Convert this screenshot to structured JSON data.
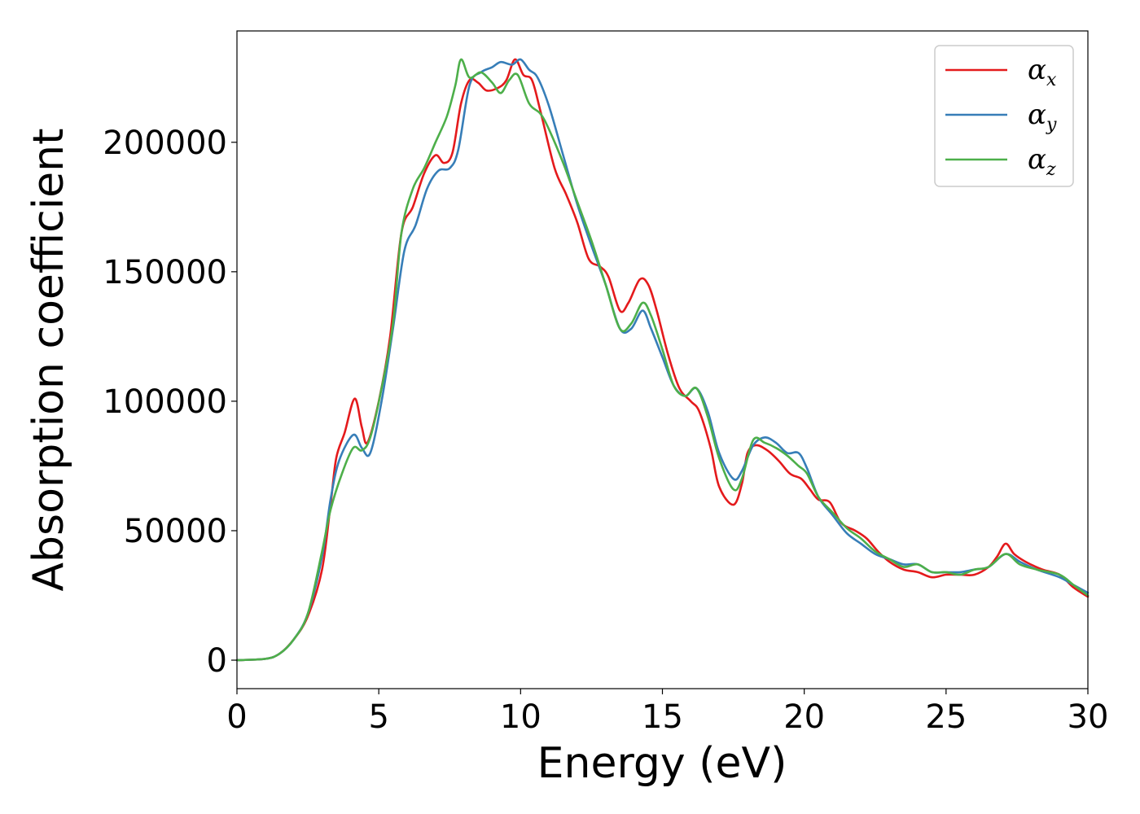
{
  "chart_data": {
    "type": "line",
    "title": "",
    "xlabel": "Energy (eV)",
    "ylabel": "Absorption coefficient",
    "xlim": [
      0,
      30
    ],
    "ylim": [
      -11000,
      243000
    ],
    "xticks": [
      0,
      5,
      10,
      15,
      20,
      25,
      30
    ],
    "xtick_labels": [
      "0",
      "5",
      "10",
      "15",
      "20",
      "25",
      "30"
    ],
    "yticks": [
      0,
      50000,
      100000,
      150000,
      200000
    ],
    "ytick_labels": [
      "0",
      "50000",
      "100000",
      "150000",
      "200000"
    ],
    "grid": false,
    "legend_position": "top-right",
    "series": [
      {
        "name": "α",
        "subscript": "x",
        "color": "#e41a1c",
        "points": [
          [
            0,
            0
          ],
          [
            1,
            500
          ],
          [
            1.5,
            2500
          ],
          [
            2,
            8000
          ],
          [
            2.5,
            17000
          ],
          [
            3,
            35000
          ],
          [
            3.3,
            60000
          ],
          [
            3.5,
            78000
          ],
          [
            3.8,
            88000
          ],
          [
            4.15,
            101000
          ],
          [
            4.4,
            90000
          ],
          [
            4.6,
            84000
          ],
          [
            5,
            100000
          ],
          [
            5.4,
            125000
          ],
          [
            5.8,
            165000
          ],
          [
            6.2,
            175000
          ],
          [
            6.6,
            188000
          ],
          [
            7,
            195000
          ],
          [
            7.3,
            192000
          ],
          [
            7.6,
            196000
          ],
          [
            7.9,
            215000
          ],
          [
            8.2,
            224000
          ],
          [
            8.5,
            223000
          ],
          [
            8.8,
            220000
          ],
          [
            9.2,
            221000
          ],
          [
            9.5,
            224000
          ],
          [
            9.8,
            232000
          ],
          [
            10.1,
            226000
          ],
          [
            10.4,
            224000
          ],
          [
            10.7,
            212000
          ],
          [
            11.2,
            190000
          ],
          [
            11.6,
            180000
          ],
          [
            12,
            169000
          ],
          [
            12.4,
            155000
          ],
          [
            12.8,
            152000
          ],
          [
            13.1,
            148000
          ],
          [
            13.5,
            135000
          ],
          [
            13.8,
            138000
          ],
          [
            14.2,
            147000
          ],
          [
            14.5,
            145000
          ],
          [
            14.8,
            135000
          ],
          [
            15.2,
            118000
          ],
          [
            15.6,
            105000
          ],
          [
            16,
            100000
          ],
          [
            16.3,
            96000
          ],
          [
            16.7,
            82000
          ],
          [
            17,
            67000
          ],
          [
            17.5,
            60000
          ],
          [
            17.8,
            68000
          ],
          [
            18,
            80000
          ],
          [
            18.3,
            83000
          ],
          [
            18.7,
            81000
          ],
          [
            19.1,
            77000
          ],
          [
            19.5,
            72000
          ],
          [
            19.9,
            70000
          ],
          [
            20.2,
            66000
          ],
          [
            20.5,
            62000
          ],
          [
            20.9,
            61000
          ],
          [
            21.3,
            53000
          ],
          [
            21.8,
            50000
          ],
          [
            22.2,
            47000
          ],
          [
            22.6,
            42000
          ],
          [
            23,
            38000
          ],
          [
            23.5,
            35000
          ],
          [
            24,
            34000
          ],
          [
            24.5,
            32000
          ],
          [
            25,
            33000
          ],
          [
            25.5,
            33000
          ],
          [
            26,
            33000
          ],
          [
            26.5,
            36000
          ],
          [
            26.8,
            40000
          ],
          [
            27.1,
            45000
          ],
          [
            27.4,
            41000
          ],
          [
            27.8,
            38000
          ],
          [
            28.4,
            35000
          ],
          [
            29,
            33000
          ],
          [
            29.5,
            28000
          ],
          [
            30,
            24500
          ]
        ]
      },
      {
        "name": "α",
        "subscript": "y",
        "color": "#377eb8",
        "points": [
          [
            0,
            0
          ],
          [
            1,
            500
          ],
          [
            1.5,
            2500
          ],
          [
            2,
            8000
          ],
          [
            2.5,
            18000
          ],
          [
            3,
            40000
          ],
          [
            3.3,
            62000
          ],
          [
            3.6,
            77000
          ],
          [
            4.1,
            87000
          ],
          [
            4.4,
            82000
          ],
          [
            4.7,
            80000
          ],
          [
            5.1,
            100000
          ],
          [
            5.5,
            128000
          ],
          [
            5.9,
            158000
          ],
          [
            6.3,
            168000
          ],
          [
            6.7,
            182000
          ],
          [
            7.1,
            189000
          ],
          [
            7.5,
            190000
          ],
          [
            7.8,
            197000
          ],
          [
            8.2,
            222000
          ],
          [
            8.6,
            227000
          ],
          [
            9,
            229000
          ],
          [
            9.3,
            231000
          ],
          [
            9.7,
            230000
          ],
          [
            10,
            232000
          ],
          [
            10.3,
            228000
          ],
          [
            10.6,
            225000
          ],
          [
            11,
            214000
          ],
          [
            11.5,
            195000
          ],
          [
            12,
            176000
          ],
          [
            12.5,
            160000
          ],
          [
            13,
            145000
          ],
          [
            13.5,
            128000
          ],
          [
            13.9,
            128000
          ],
          [
            14.3,
            135000
          ],
          [
            14.6,
            128000
          ],
          [
            15,
            117000
          ],
          [
            15.4,
            106000
          ],
          [
            15.8,
            102000
          ],
          [
            16.2,
            105000
          ],
          [
            16.6,
            96000
          ],
          [
            17,
            80000
          ],
          [
            17.5,
            70000
          ],
          [
            17.8,
            73000
          ],
          [
            18.2,
            83000
          ],
          [
            18.6,
            86000
          ],
          [
            19,
            84000
          ],
          [
            19.4,
            80000
          ],
          [
            19.8,
            80000
          ],
          [
            20.1,
            74000
          ],
          [
            20.5,
            63000
          ],
          [
            21,
            56000
          ],
          [
            21.5,
            49000
          ],
          [
            22,
            45000
          ],
          [
            22.5,
            41000
          ],
          [
            23,
            39000
          ],
          [
            23.5,
            37000
          ],
          [
            24,
            37000
          ],
          [
            24.5,
            34000
          ],
          [
            25,
            34000
          ],
          [
            25.5,
            34000
          ],
          [
            26,
            35000
          ],
          [
            26.5,
            36000
          ],
          [
            27.1,
            41000
          ],
          [
            27.6,
            38000
          ],
          [
            28.2,
            35000
          ],
          [
            29,
            32000
          ],
          [
            29.5,
            29000
          ],
          [
            30,
            26000
          ]
        ]
      },
      {
        "name": "α",
        "subscript": "z",
        "color": "#4daf4a",
        "points": [
          [
            0,
            0
          ],
          [
            1,
            500
          ],
          [
            1.5,
            2500
          ],
          [
            2,
            8000
          ],
          [
            2.5,
            18000
          ],
          [
            3,
            42000
          ],
          [
            3.3,
            58000
          ],
          [
            3.7,
            72000
          ],
          [
            4.1,
            82000
          ],
          [
            4.4,
            81000
          ],
          [
            4.7,
            86000
          ],
          [
            5.1,
            105000
          ],
          [
            5.5,
            130000
          ],
          [
            5.8,
            165000
          ],
          [
            6.2,
            182000
          ],
          [
            6.6,
            190000
          ],
          [
            7,
            200000
          ],
          [
            7.4,
            210000
          ],
          [
            7.7,
            222000
          ],
          [
            7.9,
            232000
          ],
          [
            8.2,
            225000
          ],
          [
            8.6,
            227000
          ],
          [
            9,
            223000
          ],
          [
            9.3,
            219000
          ],
          [
            9.6,
            224000
          ],
          [
            9.9,
            226000
          ],
          [
            10.3,
            215000
          ],
          [
            10.7,
            211000
          ],
          [
            11,
            205000
          ],
          [
            11.5,
            192000
          ],
          [
            12,
            177000
          ],
          [
            12.5,
            162000
          ],
          [
            13,
            145000
          ],
          [
            13.5,
            128000
          ],
          [
            13.9,
            130000
          ],
          [
            14.3,
            138000
          ],
          [
            14.6,
            133000
          ],
          [
            15,
            120000
          ],
          [
            15.4,
            106000
          ],
          [
            15.8,
            102000
          ],
          [
            16.2,
            105000
          ],
          [
            16.6,
            94000
          ],
          [
            17,
            78000
          ],
          [
            17.5,
            66000
          ],
          [
            17.8,
            70000
          ],
          [
            18.2,
            85000
          ],
          [
            18.6,
            84000
          ],
          [
            19,
            82000
          ],
          [
            19.4,
            79000
          ],
          [
            19.8,
            75000
          ],
          [
            20.1,
            72000
          ],
          [
            20.5,
            63000
          ],
          [
            21,
            57000
          ],
          [
            21.5,
            51000
          ],
          [
            22,
            47000
          ],
          [
            22.5,
            42000
          ],
          [
            23,
            39000
          ],
          [
            23.5,
            36000
          ],
          [
            24,
            37000
          ],
          [
            24.5,
            34000
          ],
          [
            25,
            34000
          ],
          [
            25.5,
            33000
          ],
          [
            26,
            35000
          ],
          [
            26.5,
            36000
          ],
          [
            27.1,
            41000
          ],
          [
            27.6,
            37000
          ],
          [
            28.2,
            35000
          ],
          [
            29,
            33000
          ],
          [
            29.5,
            29000
          ],
          [
            30,
            25000
          ]
        ]
      }
    ]
  }
}
